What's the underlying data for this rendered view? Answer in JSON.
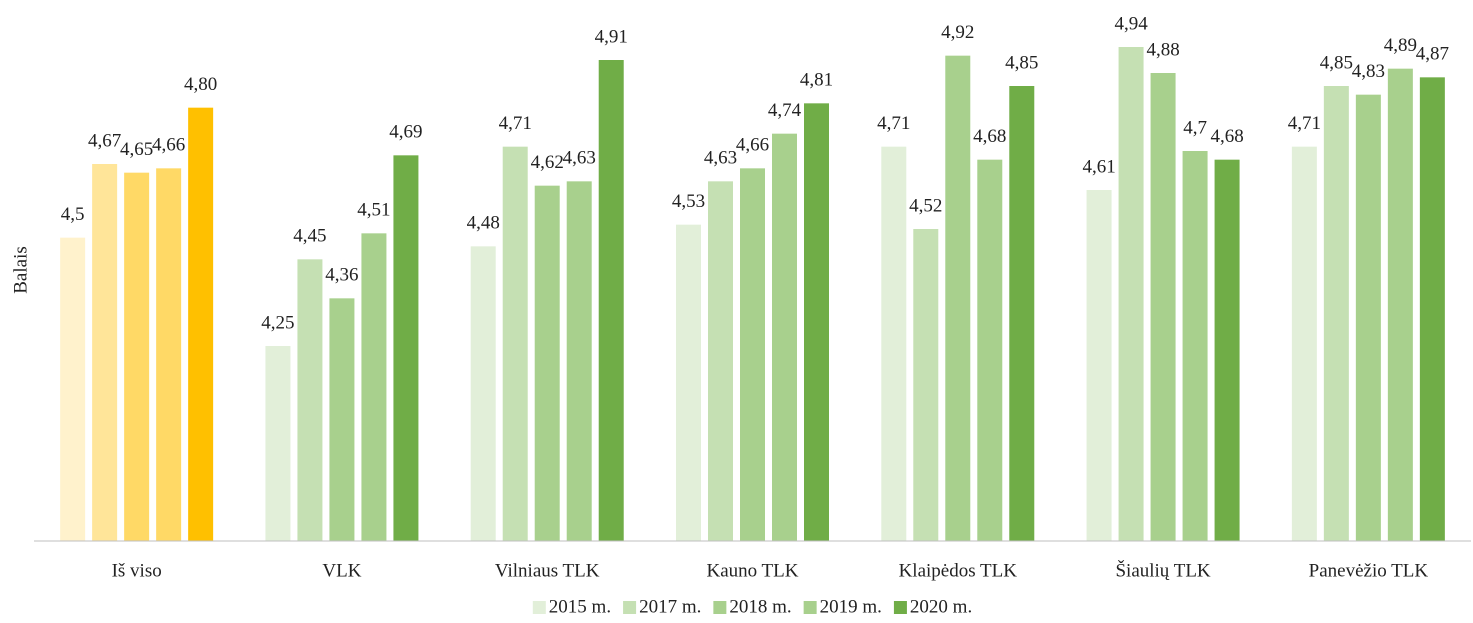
{
  "chart_data": {
    "type": "bar",
    "y_axis_label": "Balais",
    "categories": [
      "Iš viso",
      "VLK",
      "Vilniaus TLK",
      "Kauno TLK",
      "Klaipėdos TLK",
      "Šiaulių TLK",
      "Panevėžio TLK"
    ],
    "ylim": [
      3.8,
      5.0
    ],
    "series": [
      {
        "name": "2015 m.",
        "color": "#e2efd9",
        "colors": [
          "#fff2cc",
          "#e2efd9",
          "#e2efd9",
          "#e2efd9",
          "#e2efd9",
          "#e2efd9",
          "#e2efd9"
        ],
        "values": [
          4.5,
          4.25,
          4.48,
          4.53,
          4.71,
          4.61,
          4.71
        ],
        "value_labels": [
          "4,5",
          "4,25",
          "4,48",
          "4,53",
          "4,71",
          "4,61",
          "4,71"
        ]
      },
      {
        "name": "2017 m.",
        "color": "#c5e0b3",
        "colors": [
          "#ffe599",
          "#c5e0b3",
          "#c5e0b3",
          "#c5e0b3",
          "#c5e0b3",
          "#c5e0b3",
          "#c5e0b3"
        ],
        "values": [
          4.67,
          4.45,
          4.71,
          4.63,
          4.52,
          4.94,
          4.85
        ],
        "value_labels": [
          "4,67",
          "4,45",
          "4,71",
          "4,63",
          "4,52",
          "4,94",
          "4,85"
        ]
      },
      {
        "name": "2018 m.",
        "color": "#a8d08d",
        "colors": [
          "#ffd966",
          "#a8d08d",
          "#a8d08d",
          "#a8d08d",
          "#a8d08d",
          "#a8d08d",
          "#a8d08d"
        ],
        "values": [
          4.65,
          4.36,
          4.62,
          4.66,
          4.92,
          4.88,
          4.83
        ],
        "value_labels": [
          "4,65",
          "4,36",
          "4,62",
          "4,66",
          "4,92",
          "4,88",
          "4,83"
        ]
      },
      {
        "name": "2019 m.",
        "color": "#a8d08d",
        "colors": [
          "#ffd966",
          "#a8d08d",
          "#a8d08d",
          "#a8d08d",
          "#a8d08d",
          "#a8d08d",
          "#a8d08d"
        ],
        "values": [
          4.66,
          4.51,
          4.63,
          4.74,
          4.68,
          4.7,
          4.89
        ],
        "value_labels": [
          "4,66",
          "4,51",
          "4,63",
          "4,74",
          "4,68",
          "4,7",
          "4,89"
        ]
      },
      {
        "name": "2020 m.",
        "color": "#70ad47",
        "colors": [
          "#ffc000",
          "#70ad47",
          "#70ad47",
          "#70ad47",
          "#70ad47",
          "#70ad47",
          "#70ad47"
        ],
        "values": [
          4.8,
          4.69,
          4.91,
          4.81,
          4.85,
          4.68,
          4.87
        ],
        "value_labels": [
          "4,80",
          "4,69",
          "4,91",
          "4,81",
          "4,85",
          "4,68",
          "4,87"
        ]
      }
    ],
    "legend": "bottom"
  }
}
